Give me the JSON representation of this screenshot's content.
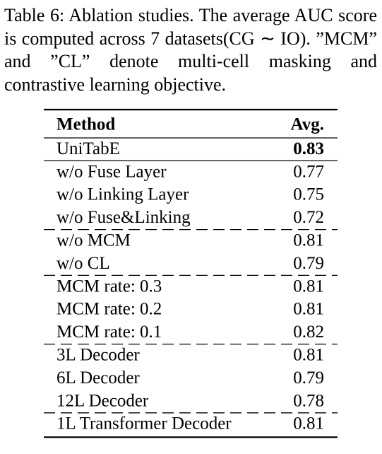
{
  "caption": "Table 6: Ablation studies. The average AUC score is computed across 7 datasets(CG ∼ IO). ”MCM” and ”CL” denote multi-cell masking and contrastive learning objective.",
  "table": {
    "header": [
      "Method",
      "Avg."
    ],
    "groups": [
      [
        [
          "UniTabE",
          "0.83"
        ]
      ],
      [
        [
          "w/o Fuse Layer",
          "0.77"
        ],
        [
          "w/o Linking Layer",
          "0.75"
        ],
        [
          "w/o Fuse&Linking",
          "0.72"
        ]
      ],
      [
        [
          "w/o MCM",
          "0.81"
        ],
        [
          "w/o CL",
          "0.79"
        ]
      ],
      [
        [
          "MCM rate: 0.3",
          "0.81"
        ],
        [
          "MCM rate: 0.2",
          "0.81"
        ],
        [
          "MCM rate: 0.1",
          "0.82"
        ]
      ],
      [
        [
          "3L Decoder",
          "0.81"
        ],
        [
          "6L Decoder",
          "0.79"
        ],
        [
          "12L Decoder",
          "0.78"
        ]
      ],
      [
        [
          "1L Transformer Decoder",
          "0.81"
        ]
      ]
    ]
  }
}
